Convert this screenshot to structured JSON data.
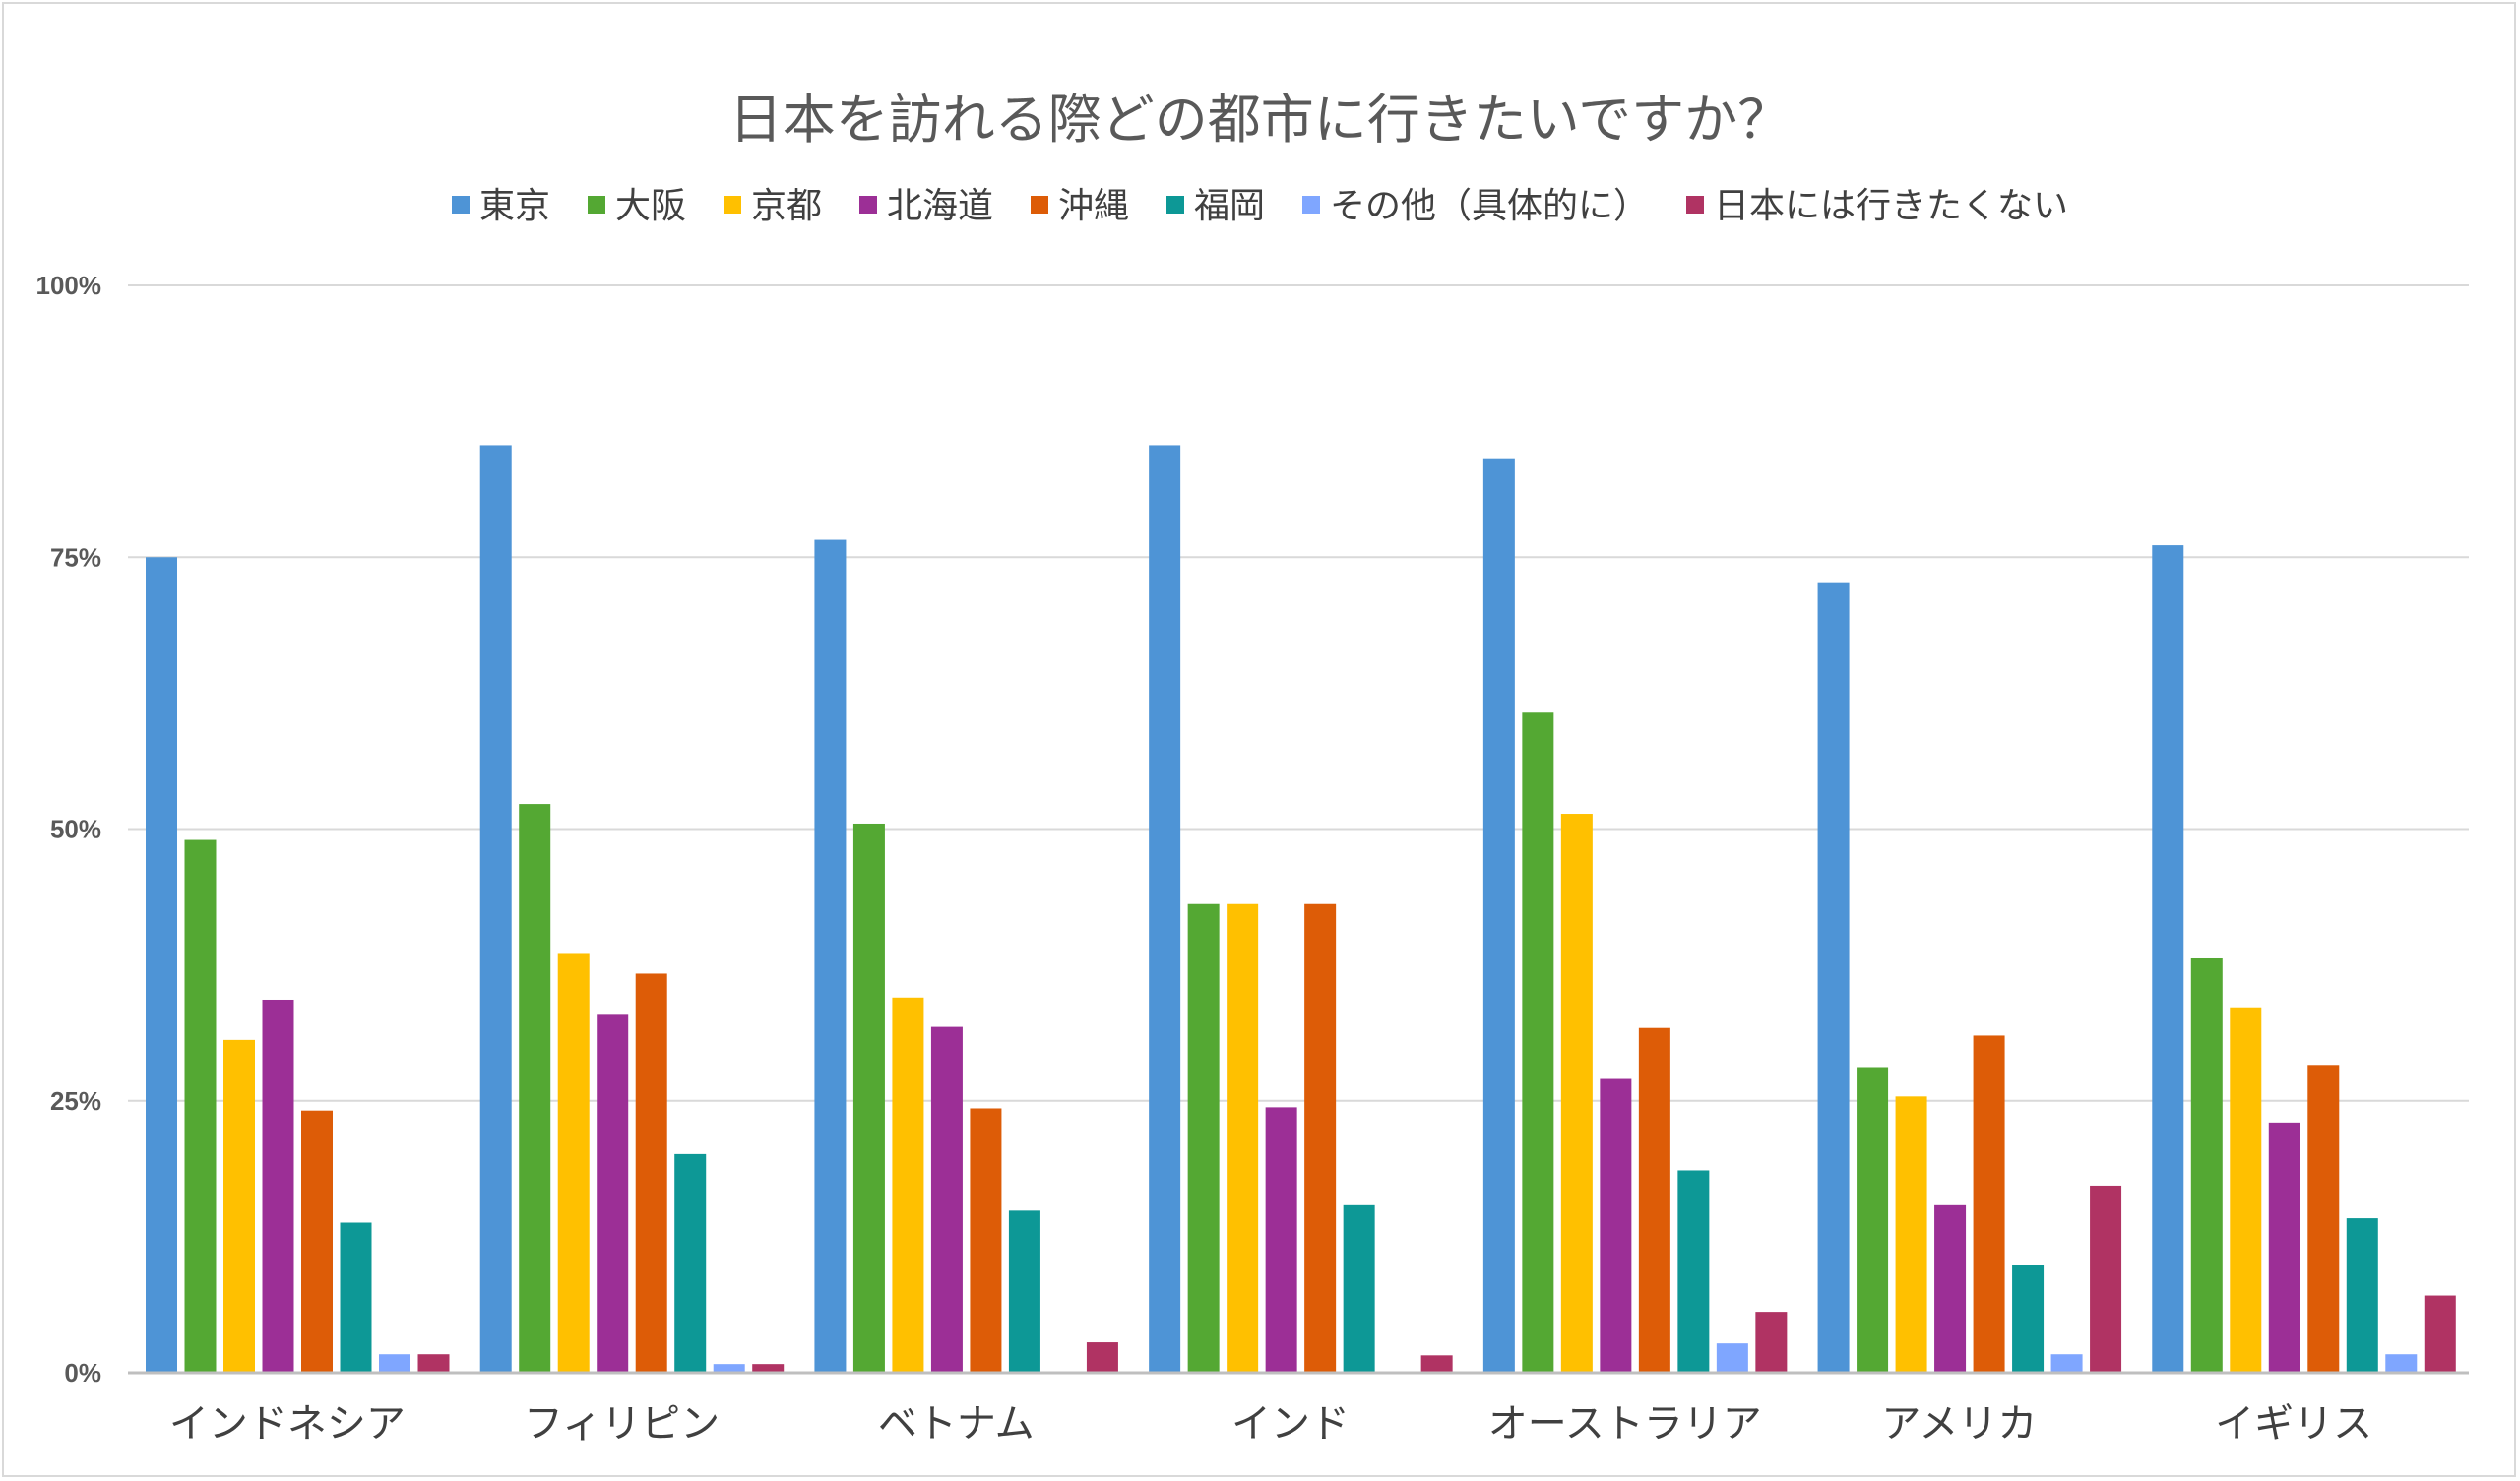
{
  "chart_data": {
    "type": "bar",
    "title": "日本を訪れる際どの都市に行きたいですか？",
    "categories": [
      "インドネシア",
      "フィリピン",
      "ベトナム",
      "インド",
      "オーストラリア",
      "アメリカ",
      "イギリス"
    ],
    "yticks": [
      "0%",
      "25%",
      "50%",
      "75%",
      "100%"
    ],
    "ylim": [
      0,
      100
    ],
    "grid": true,
    "legend_position": "top",
    "series": [
      {
        "name": "東京",
        "color": "#4e94d6",
        "values": [
          75.0,
          85.3,
          76.6,
          85.3,
          84.1,
          72.7,
          76.1
        ]
      },
      {
        "name": "大阪",
        "color": "#54a833",
        "values": [
          49.0,
          52.3,
          50.5,
          43.1,
          60.7,
          28.1,
          38.1
        ]
      },
      {
        "name": "京都",
        "color": "#ffc000",
        "values": [
          30.6,
          38.6,
          34.5,
          43.1,
          51.4,
          25.4,
          33.6
        ]
      },
      {
        "name": "北海道",
        "color": "#9c2f96",
        "values": [
          34.3,
          33.0,
          31.8,
          24.4,
          27.1,
          15.4,
          23.0
        ]
      },
      {
        "name": "沖縄",
        "color": "#dd5c07",
        "values": [
          24.1,
          36.7,
          24.3,
          43.1,
          31.7,
          31.0,
          28.3
        ]
      },
      {
        "name": "福岡",
        "color": "#0d9896",
        "values": [
          13.8,
          20.1,
          14.9,
          15.4,
          18.6,
          9.9,
          14.2
        ]
      },
      {
        "name": "その他（具体的に）",
        "color": "#7fa6ff",
        "values": [
          1.7,
          0.8,
          0,
          0,
          2.7,
          1.7,
          1.7
        ]
      },
      {
        "name": "日本には行きたくない",
        "color": "#b03363",
        "values": [
          1.7,
          0.8,
          2.8,
          1.6,
          5.6,
          17.2,
          7.1
        ]
      }
    ]
  }
}
